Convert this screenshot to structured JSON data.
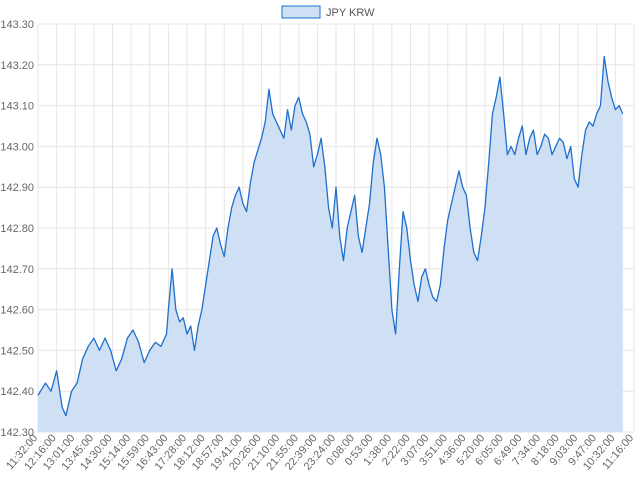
{
  "chart_data": {
    "type": "area",
    "title": "",
    "xlabel": "",
    "ylabel": "",
    "ylim": [
      142.3,
      143.3
    ],
    "yticks": [
      "143.30",
      "143.20",
      "143.10",
      "143.00",
      "142.90",
      "142.80",
      "142.70",
      "142.60",
      "142.50",
      "142.40",
      "142.30"
    ],
    "xticks": [
      "11:32:00",
      "12:16:00",
      "13:01:00",
      "13:45:00",
      "14:30:00",
      "15:14:00",
      "15:59:00",
      "16:43:00",
      "17:28:00",
      "18:12:00",
      "18:57:00",
      "19:41:00",
      "20:26:00",
      "21:10:00",
      "21:55:00",
      "22:39:00",
      "23:24:00",
      "0:08:00",
      "0:53:00",
      "1:38:00",
      "2:22:00",
      "3:07:00",
      "3:51:00",
      "4:36:00",
      "5:20:00",
      "6:05:00",
      "6:49:00",
      "7:34:00",
      "8:18:00",
      "9:03:00",
      "9:47:00",
      "10:32:00",
      "11:16:00"
    ],
    "grid": true,
    "legend_position": "top-center",
    "colors": {
      "fill": "#cfe0f4",
      "line": "#1f6fcb"
    },
    "series": [
      {
        "name": "JPY KRW",
        "points": [
          [
            0,
            142.39
          ],
          [
            0.4,
            142.42
          ],
          [
            0.7,
            142.4
          ],
          [
            1.0,
            142.45
          ],
          [
            1.3,
            142.36
          ],
          [
            1.5,
            142.34
          ],
          [
            1.8,
            142.4
          ],
          [
            2.1,
            142.42
          ],
          [
            2.4,
            142.48
          ],
          [
            2.7,
            142.51
          ],
          [
            3.0,
            142.53
          ],
          [
            3.3,
            142.5
          ],
          [
            3.6,
            142.53
          ],
          [
            3.9,
            142.5
          ],
          [
            4.2,
            142.45
          ],
          [
            4.5,
            142.48
          ],
          [
            4.8,
            142.53
          ],
          [
            5.1,
            142.55
          ],
          [
            5.4,
            142.52
          ],
          [
            5.7,
            142.47
          ],
          [
            6.0,
            142.5
          ],
          [
            6.3,
            142.52
          ],
          [
            6.6,
            142.51
          ],
          [
            6.9,
            142.54
          ],
          [
            7.0,
            142.6
          ],
          [
            7.2,
            142.7
          ],
          [
            7.4,
            142.6
          ],
          [
            7.6,
            142.57
          ],
          [
            7.8,
            142.58
          ],
          [
            8.0,
            142.54
          ],
          [
            8.2,
            142.56
          ],
          [
            8.4,
            142.5
          ],
          [
            8.6,
            142.56
          ],
          [
            8.8,
            142.6
          ],
          [
            9.0,
            142.66
          ],
          [
            9.2,
            142.72
          ],
          [
            9.4,
            142.78
          ],
          [
            9.6,
            142.8
          ],
          [
            9.8,
            142.76
          ],
          [
            10.0,
            142.73
          ],
          [
            10.2,
            142.8
          ],
          [
            10.4,
            142.85
          ],
          [
            10.6,
            142.88
          ],
          [
            10.8,
            142.9
          ],
          [
            11.0,
            142.86
          ],
          [
            11.2,
            142.84
          ],
          [
            11.4,
            142.91
          ],
          [
            11.6,
            142.96
          ],
          [
            11.8,
            142.99
          ],
          [
            12.0,
            143.02
          ],
          [
            12.2,
            143.06
          ],
          [
            12.4,
            143.14
          ],
          [
            12.6,
            143.08
          ],
          [
            12.8,
            143.06
          ],
          [
            13.0,
            143.04
          ],
          [
            13.2,
            143.02
          ],
          [
            13.4,
            143.09
          ],
          [
            13.6,
            143.04
          ],
          [
            13.8,
            143.1
          ],
          [
            14.0,
            143.12
          ],
          [
            14.2,
            143.08
          ],
          [
            14.4,
            143.06
          ],
          [
            14.6,
            143.03
          ],
          [
            14.8,
            142.95
          ],
          [
            15.0,
            142.98
          ],
          [
            15.2,
            143.02
          ],
          [
            15.4,
            142.95
          ],
          [
            15.6,
            142.85
          ],
          [
            15.8,
            142.8
          ],
          [
            16.0,
            142.9
          ],
          [
            16.2,
            142.78
          ],
          [
            16.4,
            142.72
          ],
          [
            16.6,
            142.8
          ],
          [
            16.8,
            142.84
          ],
          [
            17.0,
            142.88
          ],
          [
            17.2,
            142.78
          ],
          [
            17.4,
            142.74
          ],
          [
            17.6,
            142.8
          ],
          [
            17.8,
            142.86
          ],
          [
            18.0,
            142.96
          ],
          [
            18.2,
            143.02
          ],
          [
            18.4,
            142.98
          ],
          [
            18.6,
            142.9
          ],
          [
            18.8,
            142.75
          ],
          [
            19.0,
            142.6
          ],
          [
            19.2,
            142.54
          ],
          [
            19.4,
            142.7
          ],
          [
            19.6,
            142.84
          ],
          [
            19.8,
            142.8
          ],
          [
            20.0,
            142.72
          ],
          [
            20.2,
            142.66
          ],
          [
            20.4,
            142.62
          ],
          [
            20.6,
            142.68
          ],
          [
            20.8,
            142.7
          ],
          [
            21.0,
            142.66
          ],
          [
            21.2,
            142.63
          ],
          [
            21.4,
            142.62
          ],
          [
            21.6,
            142.66
          ],
          [
            21.8,
            142.75
          ],
          [
            22.0,
            142.82
          ],
          [
            22.2,
            142.86
          ],
          [
            22.4,
            142.9
          ],
          [
            22.6,
            142.94
          ],
          [
            22.8,
            142.9
          ],
          [
            23.0,
            142.88
          ],
          [
            23.2,
            142.8
          ],
          [
            23.4,
            142.74
          ],
          [
            23.6,
            142.72
          ],
          [
            23.8,
            142.78
          ],
          [
            24.0,
            142.85
          ],
          [
            24.2,
            142.96
          ],
          [
            24.4,
            143.08
          ],
          [
            24.6,
            143.12
          ],
          [
            24.8,
            143.17
          ],
          [
            25.0,
            143.08
          ],
          [
            25.2,
            142.98
          ],
          [
            25.4,
            143.0
          ],
          [
            25.6,
            142.98
          ],
          [
            25.8,
            143.02
          ],
          [
            26.0,
            143.05
          ],
          [
            26.2,
            142.98
          ],
          [
            26.4,
            143.02
          ],
          [
            26.6,
            143.04
          ],
          [
            26.8,
            142.98
          ],
          [
            27.0,
            143.0
          ],
          [
            27.2,
            143.03
          ],
          [
            27.4,
            143.02
          ],
          [
            27.6,
            142.98
          ],
          [
            27.8,
            143.0
          ],
          [
            28.0,
            143.02
          ],
          [
            28.2,
            143.01
          ],
          [
            28.4,
            142.97
          ],
          [
            28.6,
            143.0
          ],
          [
            28.8,
            142.92
          ],
          [
            29.0,
            142.9
          ],
          [
            29.2,
            142.98
          ],
          [
            29.4,
            143.04
          ],
          [
            29.6,
            143.06
          ],
          [
            29.8,
            143.05
          ],
          [
            30.0,
            143.08
          ],
          [
            30.2,
            143.1
          ],
          [
            30.4,
            143.22
          ],
          [
            30.6,
            143.16
          ],
          [
            30.8,
            143.12
          ],
          [
            31.0,
            143.09
          ],
          [
            31.2,
            143.1
          ],
          [
            31.4,
            143.08
          ]
        ]
      }
    ]
  }
}
